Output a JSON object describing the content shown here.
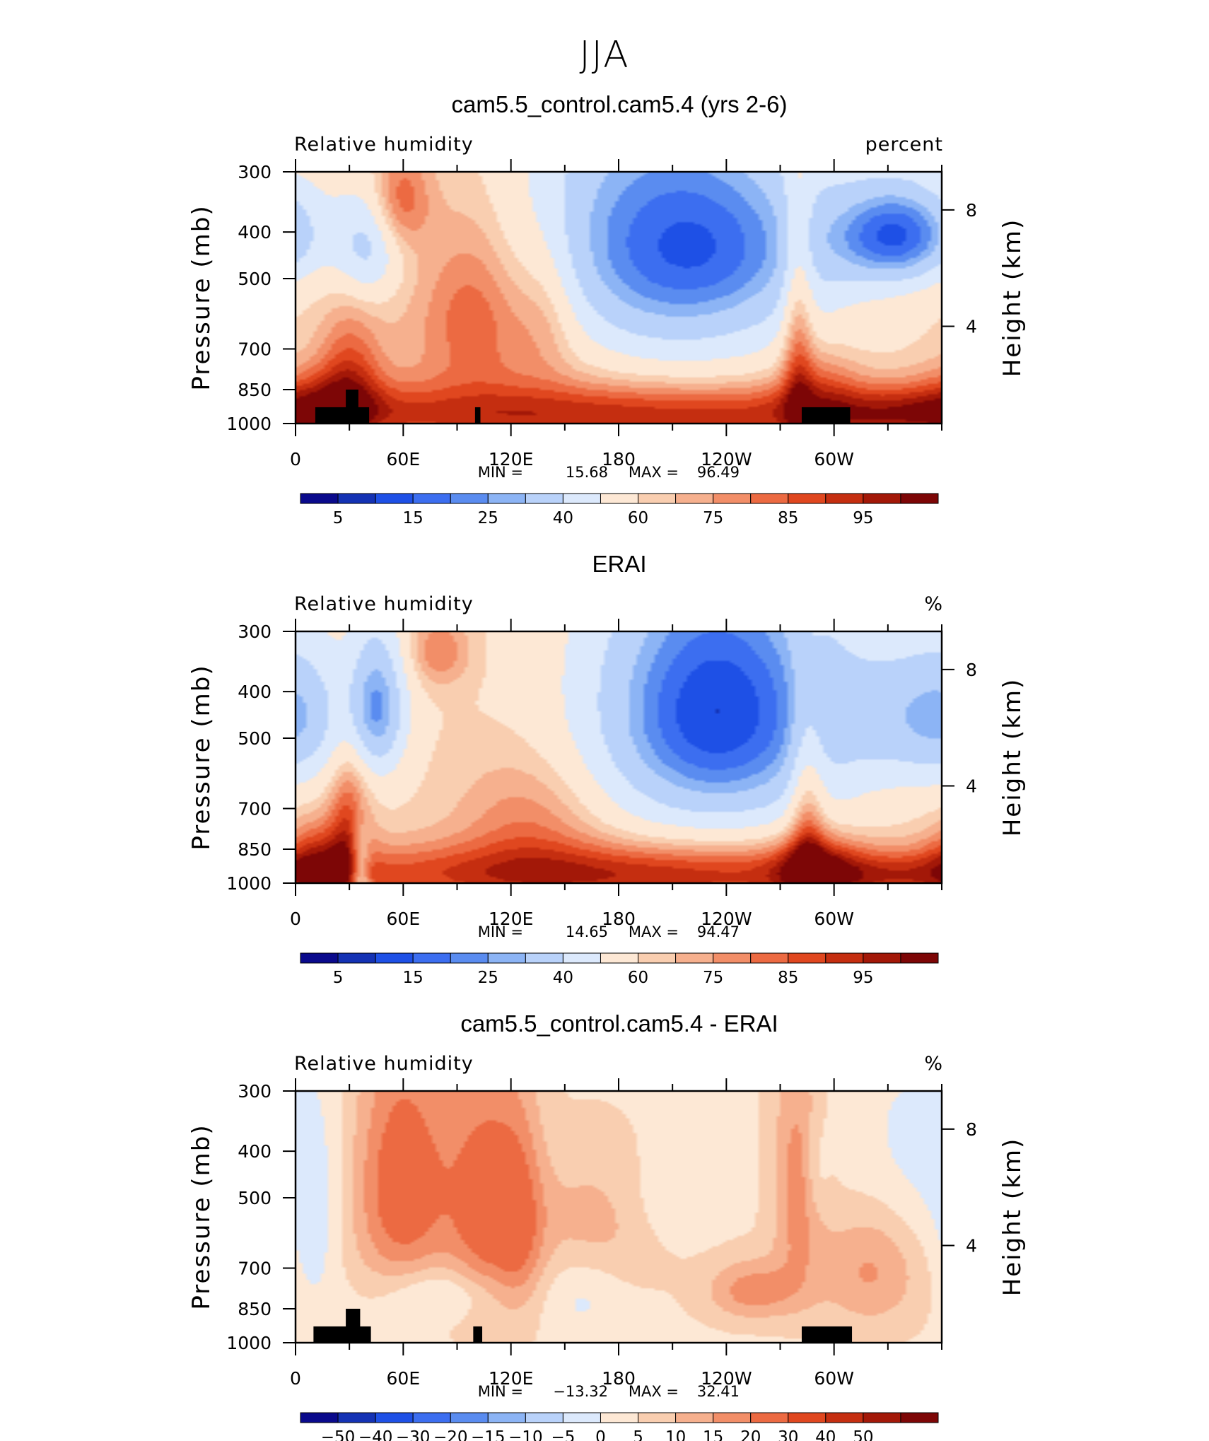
{
  "title": "JJA",
  "colors": {
    "rh_colormap": [
      "#0a0a8c",
      "#1432b4",
      "#1e50e6",
      "#3c6ef0",
      "#5a8cf0",
      "#8cb4f5",
      "#b9d2fa",
      "#dce9fc",
      "#fde8d5",
      "#f9ceb0",
      "#f6b08e",
      "#f28e68",
      "#ec6a42",
      "#e0471f",
      "#c52e10",
      "#a31808",
      "#7d0606"
    ],
    "diff_colormap": [
      "#0a0a8c",
      "#1432b4",
      "#1e50e6",
      "#3c6ef0",
      "#5a8cf0",
      "#8cb4f5",
      "#b9d2fa",
      "#dce9fc",
      "#fde8d5",
      "#f9ceb0",
      "#f6b08e",
      "#f28e68",
      "#ec6a42",
      "#e0471f",
      "#c52e10",
      "#a31808",
      "#7d0606"
    ],
    "topography": "#000000"
  },
  "chart_data": [
    {
      "type": "heatmap",
      "title": "cam5.5_control.cam5.4 (yrs 2-6)",
      "left_label": "Relative humidity",
      "right_label": "percent",
      "ylabel": "Pressure (mb)",
      "ylabel_right": "Height (km)",
      "x_ticks": [
        "0",
        "60E",
        "120E",
        "180",
        "120W",
        "60W"
      ],
      "y_ticks": [
        "300",
        "400",
        "500",
        "700",
        "850",
        "1000"
      ],
      "height_ticks": [
        "8",
        "4"
      ],
      "min_label": "MIN =",
      "min_value": "15.68",
      "max_label": "MAX =",
      "max_value": "96.49",
      "colorbar_labels": [
        "5",
        "15",
        "25",
        "40",
        "60",
        "75",
        "85",
        "95"
      ],
      "blobs": [
        {
          "lon": 330,
          "p": 410,
          "sx": 25,
          "sy": 70,
          "a": -26
        },
        {
          "lon": 40,
          "p": 430,
          "sx": 12,
          "sy": 80,
          "a": -22
        },
        {
          "lon": 178,
          "p": 440,
          "sx": 72,
          "sy": 210,
          "a": -48
        },
        {
          "lon": 245,
          "p": 420,
          "sx": 38,
          "sy": 120,
          "a": -12
        },
        {
          "lon": 345,
          "p": 400,
          "sx": 25,
          "sy": 70,
          "a": -18
        },
        {
          "lon": 120,
          "p": 520,
          "sx": 50,
          "sy": 230,
          "a": 28
        },
        {
          "lon": 100,
          "p": 550,
          "sx": 20,
          "sy": 180,
          "a": 14
        },
        {
          "lon": 140,
          "p": 560,
          "sx": 12,
          "sy": 150,
          "a": 10
        },
        {
          "lon": 58,
          "p": 340,
          "sx": 12,
          "sy": 60,
          "a": 20
        },
        {
          "lon": 30,
          "p": 780,
          "sx": 12,
          "sy": 160,
          "a": 18
        },
        {
          "lon": 15,
          "p": 900,
          "sx": 22,
          "sy": 110,
          "a": 16
        },
        {
          "lon": 185,
          "p": 960,
          "sx": 185,
          "sy": 100,
          "a": 28
        },
        {
          "lon": 280,
          "p": 640,
          "sx": 6,
          "sy": 300,
          "a": 20
        },
        {
          "lon": 292,
          "p": 820,
          "sx": 16,
          "sy": 110,
          "a": 14
        },
        {
          "lon": 335,
          "p": 950,
          "sx": 40,
          "sy": 80,
          "a": 14
        }
      ],
      "base": [
        {
          "lo": 0,
          "hi": 360,
          "val": 60
        }
      ],
      "topography": [
        {
          "lon0": 11,
          "lon1": 41,
          "p": 925
        },
        {
          "lon0": 28,
          "lon1": 35,
          "p": 850
        },
        {
          "lon0": 100,
          "lon1": 103,
          "p": 925
        },
        {
          "lon0": 282,
          "lon1": 309,
          "p": 925
        }
      ]
    },
    {
      "type": "heatmap",
      "title": "ERAI",
      "left_label": "Relative humidity",
      "right_label": "%",
      "ylabel": "Pressure (mb)",
      "ylabel_right": "Height (km)",
      "x_ticks": [
        "0",
        "60E",
        "120E",
        "180",
        "120W",
        "60W"
      ],
      "y_ticks": [
        "300",
        "400",
        "500",
        "700",
        "850",
        "1000"
      ],
      "height_ticks": [
        "8",
        "4"
      ],
      "min_label": "MIN =",
      "min_value": "14.65",
      "max_label": "MAX =",
      "max_value": "94.47",
      "colorbar_labels": [
        "5",
        "15",
        "25",
        "40",
        "60",
        "75",
        "85",
        "95"
      ],
      "blobs": [
        {
          "lon": 45,
          "p": 430,
          "sx": 12,
          "sy": 110,
          "a": -35
        },
        {
          "lon": 5,
          "p": 450,
          "sx": 15,
          "sy": 120,
          "a": -12
        },
        {
          "lon": 235,
          "p": 440,
          "sx": 50,
          "sy": 210,
          "a": -50
        },
        {
          "lon": 345,
          "p": 450,
          "sx": 28,
          "sy": 110,
          "a": -22
        },
        {
          "lon": 80,
          "p": 330,
          "sx": 12,
          "sy": 40,
          "a": 15
        },
        {
          "lon": 130,
          "p": 740,
          "sx": 28,
          "sy": 160,
          "a": 14
        },
        {
          "lon": 30,
          "p": 760,
          "sx": 8,
          "sy": 200,
          "a": 22
        },
        {
          "lon": 12,
          "p": 900,
          "sx": 14,
          "sy": 120,
          "a": 22
        },
        {
          "lon": 180,
          "p": 960,
          "sx": 140,
          "sy": 100,
          "a": 30
        },
        {
          "lon": 285,
          "p": 730,
          "sx": 7,
          "sy": 250,
          "a": 20
        },
        {
          "lon": 290,
          "p": 930,
          "sx": 16,
          "sy": 100,
          "a": 24
        },
        {
          "lon": 340,
          "p": 960,
          "sx": 35,
          "sy": 70,
          "a": 14
        },
        {
          "lon": 36,
          "p": 950,
          "sx": 4,
          "sy": 130,
          "a": -28
        }
      ],
      "base": [
        {
          "lo": 0,
          "hi": 360,
          "val": 60
        }
      ],
      "topography": []
    },
    {
      "type": "heatmap",
      "title": "cam5.5_control.cam5.4 - ERAI",
      "left_label": "Relative humidity",
      "right_label": "%",
      "ylabel": "Pressure (mb)",
      "ylabel_right": "Height (km)",
      "x_ticks": [
        "0",
        "60E",
        "120E",
        "180",
        "120W",
        "60W"
      ],
      "y_ticks": [
        "300",
        "400",
        "500",
        "700",
        "850",
        "1000"
      ],
      "height_ticks": [
        "8",
        "4"
      ],
      "min_label": "MIN =",
      "min_value": "−13.32",
      "max_label": "MAX =",
      "max_value": "32.41",
      "colorbar_labels": [
        "−50",
        "−40",
        "−30",
        "−20",
        "−15",
        "−10",
        "−5",
        "0",
        "5",
        "10",
        "15",
        "20",
        "30",
        "40",
        "50"
      ],
      "blobs": [
        {
          "lon": 60,
          "p": 470,
          "sx": 20,
          "sy": 200,
          "a": 22
        },
        {
          "lon": 105,
          "p": 520,
          "sx": 14,
          "sy": 220,
          "a": 18
        },
        {
          "lon": 125,
          "p": 560,
          "sx": 10,
          "sy": 200,
          "a": 14
        },
        {
          "lon": 280,
          "p": 470,
          "sx": 10,
          "sy": 200,
          "a": 14
        },
        {
          "lon": 255,
          "p": 780,
          "sx": 18,
          "sy": 80,
          "a": 14
        },
        {
          "lon": 170,
          "p": 560,
          "sx": 30,
          "sy": 120,
          "a": 9
        },
        {
          "lon": 80,
          "p": 790,
          "sx": 24,
          "sy": 70,
          "a": -9
        },
        {
          "lon": 10,
          "p": 600,
          "sx": 10,
          "sy": 200,
          "a": -6
        },
        {
          "lon": 345,
          "p": 420,
          "sx": 30,
          "sy": 150,
          "a": -6
        },
        {
          "lon": 160,
          "p": 800,
          "sx": 15,
          "sy": 120,
          "a": -5
        },
        {
          "lon": 290,
          "p": 440,
          "sx": 5,
          "sy": 80,
          "a": -6
        },
        {
          "lon": 205,
          "p": 520,
          "sx": 20,
          "sy": 90,
          "a": -6
        },
        {
          "lon": 320,
          "p": 700,
          "sx": 20,
          "sy": 150,
          "a": 12
        }
      ],
      "base": [
        {
          "lo": 0,
          "hi": 360,
          "val": 4
        }
      ],
      "topography": [
        {
          "lon0": 10,
          "lon1": 42,
          "p": 925
        },
        {
          "lon0": 28,
          "lon1": 36,
          "p": 850
        },
        {
          "lon0": 99,
          "lon1": 104,
          "p": 925
        },
        {
          "lon0": 282,
          "lon1": 310,
          "p": 925
        }
      ]
    }
  ]
}
